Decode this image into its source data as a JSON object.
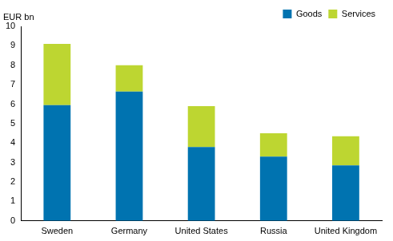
{
  "chart_data": {
    "type": "bar",
    "stacked": true,
    "ylabel": "EUR bn",
    "categories": [
      "Sweden",
      "Germany",
      "United States",
      "Russia",
      "United Kingdom"
    ],
    "series": [
      {
        "name": "Goods",
        "color": "#0073b0",
        "values": [
          5.95,
          6.65,
          3.8,
          3.3,
          2.85
        ]
      },
      {
        "name": "Services",
        "color": "#bdd631",
        "values": [
          3.15,
          1.35,
          2.1,
          1.2,
          1.5
        ]
      }
    ],
    "ylim": [
      0,
      10
    ],
    "yticks": [
      0,
      1,
      2,
      3,
      4,
      5,
      6,
      7,
      8,
      9,
      10
    ],
    "grid": false,
    "legend": "upper-right"
  }
}
